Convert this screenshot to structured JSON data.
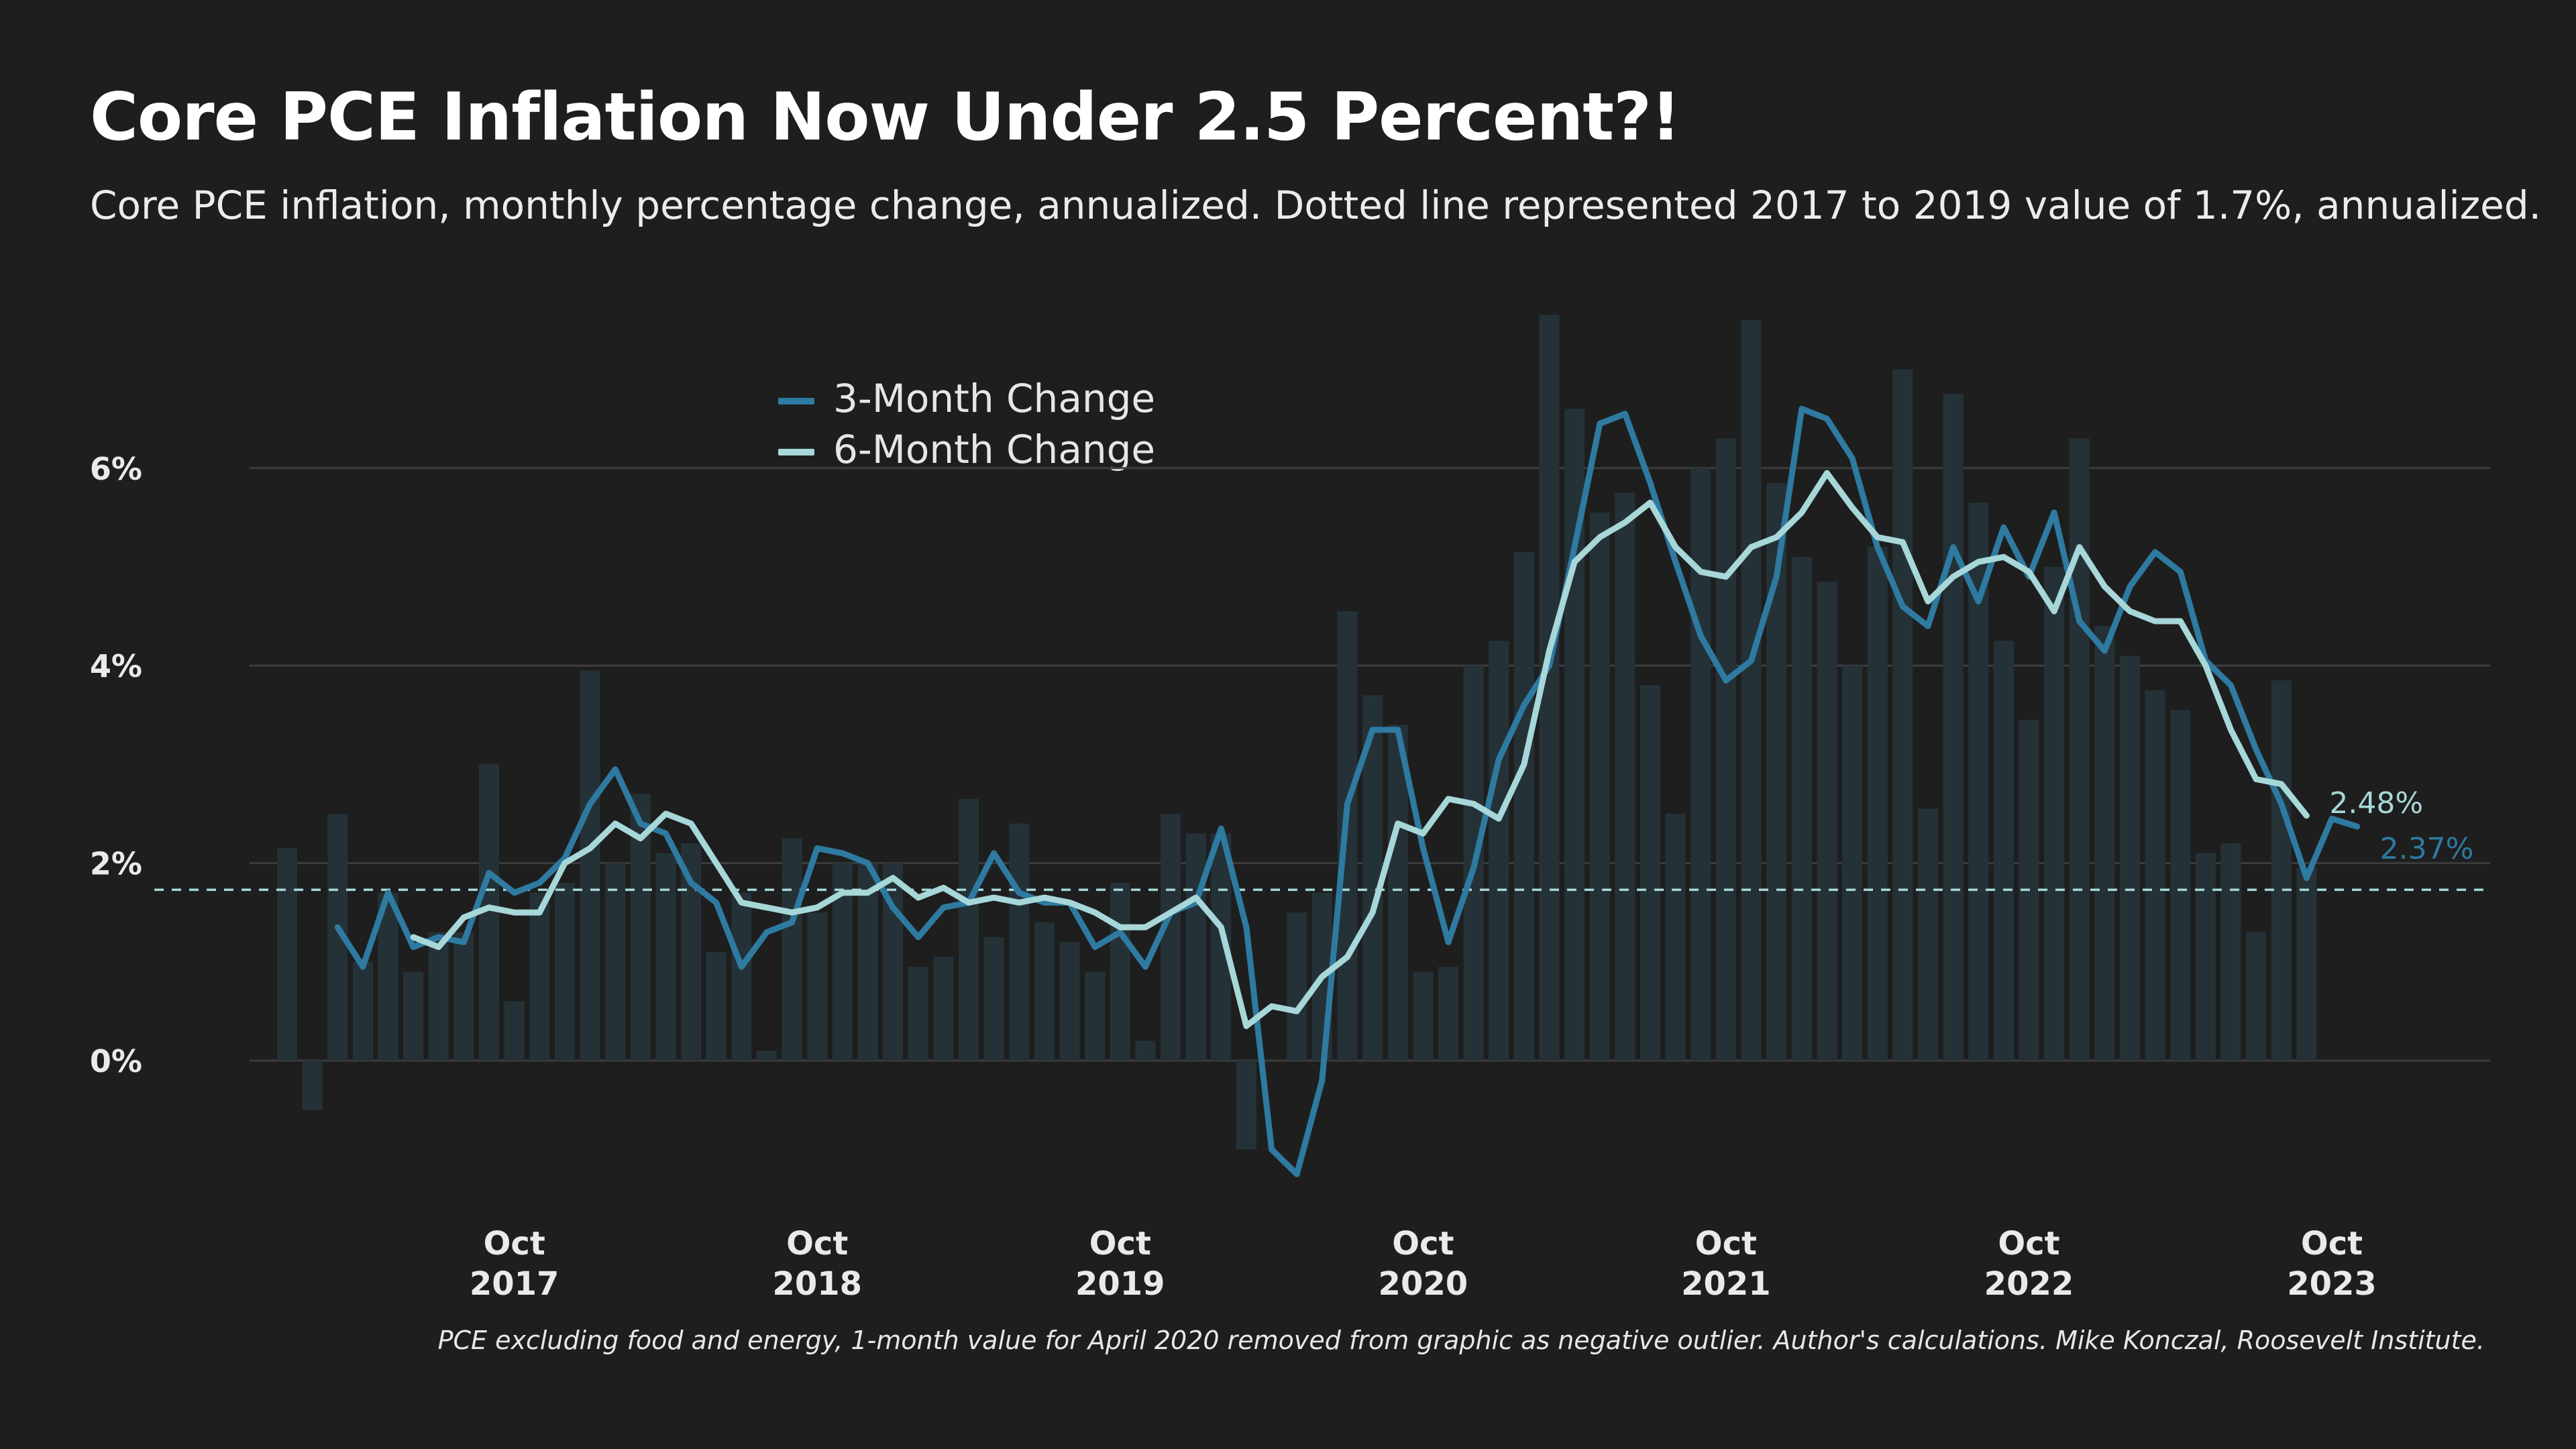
{
  "title": "Core PCE Inflation Now Under 2.5 Percent?!",
  "subtitle": "Core PCE inflation, monthly percentage change, annualized. Dotted line represented 2017 to 2019 value of 1.7%, annualized.",
  "footnote": "PCE excluding food and energy, 1-month value for April 2020 removed from graphic as negative outlier. Author's calculations. Mike Konczal, Roosevelt Institute.",
  "colors": {
    "background": "#1e1e1e",
    "bars": "#243238",
    "three_month": "#2e7aa0",
    "six_month": "#a7d7d8",
    "gridline": "#3d3d3d",
    "reference_line": "#a7d7d8"
  },
  "chart_data": {
    "type": "line",
    "x_start_month": "2017-01",
    "x_end_month": "2023-10",
    "y_unit": "%",
    "ylim": [
      -1.5,
      7.6
    ],
    "yticks": [
      0,
      2,
      4,
      6
    ],
    "ytick_labels": [
      "0%",
      "2%",
      "4%",
      "6%"
    ],
    "xticks": [
      {
        "month": "2017-10",
        "label_top": "Oct",
        "label_bottom": "2017"
      },
      {
        "month": "2018-10",
        "label_top": "Oct",
        "label_bottom": "2018"
      },
      {
        "month": "2019-10",
        "label_top": "Oct",
        "label_bottom": "2019"
      },
      {
        "month": "2020-10",
        "label_top": "Oct",
        "label_bottom": "2020"
      },
      {
        "month": "2021-10",
        "label_top": "Oct",
        "label_bottom": "2021"
      },
      {
        "month": "2022-10",
        "label_top": "Oct",
        "label_bottom": "2022"
      },
      {
        "month": "2023-10",
        "label_top": "Oct",
        "label_bottom": "2023"
      }
    ],
    "reference_line": {
      "value": 1.73,
      "style": "dashed"
    },
    "bars": {
      "name": "1-Month Change",
      "start_month": "2017-01",
      "values": [
        2.15,
        -0.5,
        2.5,
        1.0,
        1.7,
        0.9,
        1.3,
        1.3,
        3.0,
        0.6,
        1.7,
        1.8,
        3.95,
        2.0,
        2.7,
        2.1,
        2.2,
        1.1,
        1.7,
        0.1,
        2.25,
        1.5,
        2.0,
        2.0,
        2.0,
        0.95,
        1.05,
        2.65,
        1.25,
        2.4,
        1.4,
        1.2,
        0.9,
        1.8,
        0.2,
        2.5,
        2.3,
        2.3,
        -0.9,
        null,
        1.5,
        1.7,
        4.55,
        3.7,
        3.4,
        0.9,
        0.95,
        4.0,
        4.25,
        5.15,
        7.55,
        6.6,
        5.55,
        5.75,
        3.8,
        2.5,
        6.0,
        6.3,
        7.5,
        5.85,
        5.1,
        4.85,
        4.0,
        5.2,
        7.0,
        2.55,
        6.75,
        5.65,
        4.25,
        3.45,
        5.0,
        6.3,
        4.4,
        4.1,
        3.75,
        3.55,
        2.1,
        2.2,
        1.3,
        3.85,
        1.95
      ]
    },
    "series": [
      {
        "name": "3-Month Change",
        "start_month": "2017-03",
        "values": [
          1.35,
          0.95,
          1.7,
          1.15,
          1.25,
          1.2,
          1.9,
          1.7,
          1.8,
          2.05,
          2.6,
          2.95,
          2.4,
          2.3,
          1.8,
          1.6,
          0.95,
          1.3,
          1.4,
          2.15,
          2.1,
          2.0,
          1.55,
          1.25,
          1.55,
          1.6,
          2.1,
          1.7,
          1.6,
          1.6,
          1.15,
          1.3,
          0.95,
          1.5,
          1.6,
          2.35,
          1.35,
          -0.9,
          -1.15,
          -0.2,
          2.6,
          3.35,
          3.35,
          2.15,
          1.2,
          1.95,
          3.05,
          3.6,
          4.0,
          5.2,
          6.45,
          6.55,
          5.85,
          5.05,
          4.3,
          3.85,
          4.05,
          4.9,
          6.6,
          6.5,
          6.1,
          5.2,
          4.6,
          4.4,
          5.2,
          4.65,
          5.4,
          4.9,
          5.55,
          4.45,
          4.15,
          4.8,
          5.15,
          4.95,
          4.05,
          3.8,
          3.15,
          2.6,
          1.85,
          2.45,
          2.37
        ]
      },
      {
        "name": "6-Month Change",
        "start_month": "2017-06",
        "values": [
          1.25,
          1.15,
          1.45,
          1.55,
          1.5,
          1.5,
          2.0,
          2.15,
          2.4,
          2.25,
          2.5,
          2.4,
          2.0,
          1.6,
          1.55,
          1.5,
          1.55,
          1.7,
          1.7,
          1.85,
          1.65,
          1.75,
          1.6,
          1.65,
          1.6,
          1.65,
          1.6,
          1.5,
          1.35,
          1.35,
          1.5,
          1.65,
          1.35,
          0.35,
          0.55,
          0.5,
          0.85,
          1.05,
          1.5,
          2.4,
          2.3,
          2.65,
          2.6,
          2.45,
          3.0,
          4.15,
          5.05,
          5.3,
          5.45,
          5.65,
          5.2,
          4.95,
          4.9,
          5.2,
          5.3,
          5.55,
          5.95,
          5.6,
          5.3,
          5.25,
          4.65,
          4.9,
          5.05,
          5.1,
          4.95,
          4.55,
          5.2,
          4.8,
          4.55,
          4.45,
          4.45,
          4.0,
          3.35,
          2.85,
          2.8,
          2.48
        ]
      }
    ],
    "end_labels": [
      {
        "series": "6-Month Change",
        "text": "2.48%"
      },
      {
        "series": "3-Month Change",
        "text": "2.37%"
      }
    ],
    "legend": {
      "position": "top-center"
    },
    "grid": {
      "horizontal": true,
      "vertical": false
    }
  }
}
